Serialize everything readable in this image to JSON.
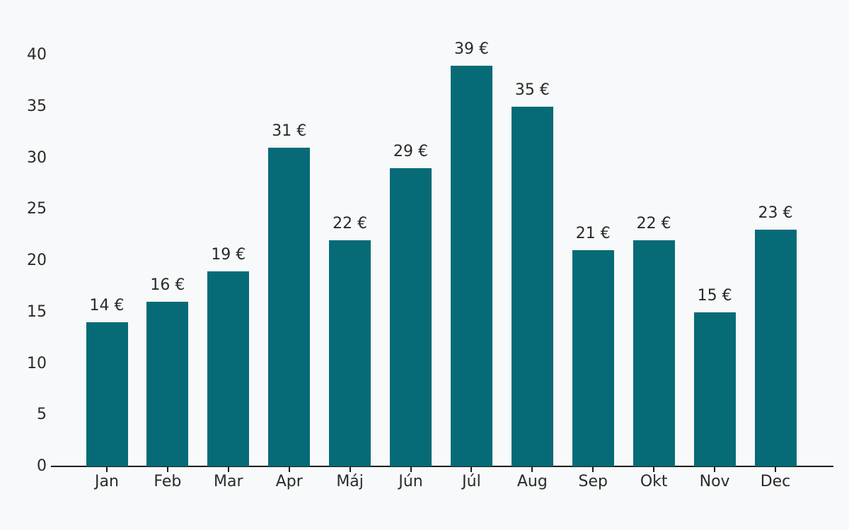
{
  "chart_data": {
    "type": "bar",
    "categories": [
      "Jan",
      "Feb",
      "Mar",
      "Apr",
      "Máj",
      "Jún",
      "Júl",
      "Aug",
      "Sep",
      "Okt",
      "Nov",
      "Dec"
    ],
    "values": [
      14,
      16,
      19,
      31,
      22,
      29,
      39,
      35,
      21,
      22,
      15,
      23
    ],
    "value_labels": [
      "14 €",
      "16 €",
      "19 €",
      "31 €",
      "22 €",
      "29 €",
      "39 €",
      "35 €",
      "21 €",
      "22 €",
      "15 €",
      "23 €"
    ],
    "title": "",
    "xlabel": "",
    "ylabel": "",
    "ylim": [
      0,
      40
    ],
    "yticks": [
      0,
      5,
      10,
      15,
      20,
      25,
      30,
      35,
      40
    ],
    "grid": false,
    "legend": null,
    "currency_suffix": " €",
    "colors": {
      "bar": "#066b76",
      "background": "#f8f9fa",
      "axis": "#1c1c1c",
      "text": "#2a2a2a"
    }
  }
}
